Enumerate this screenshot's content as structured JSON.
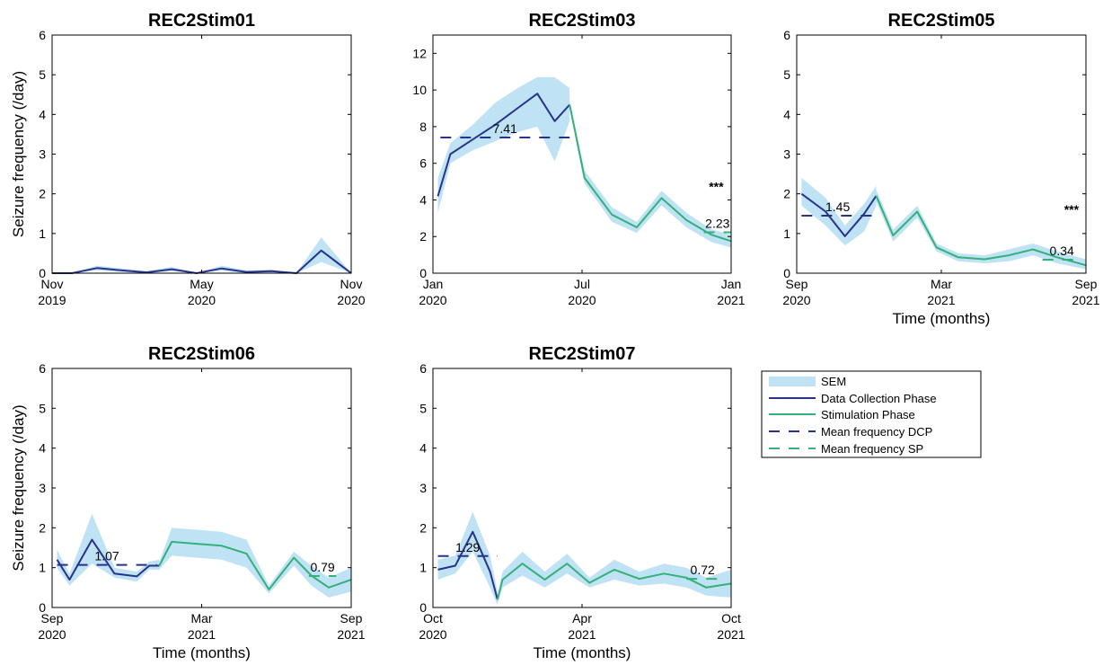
{
  "colors": {
    "data_collection": "#26328c",
    "stimulation": "#34b07a",
    "sem": "#bfe3f5",
    "axis": "#000000"
  },
  "legend": {
    "entries": [
      "SEM",
      "Data Collection Phase",
      "Stimulation Phase",
      "Mean frequency DCP",
      "Mean frequency SP"
    ]
  },
  "chart_data": [
    {
      "type": "line",
      "title": "REC2Stim01",
      "ylabel": "Seizure frequency (/day)",
      "xlabel": "",
      "xlim": [
        0,
        12
      ],
      "ylim": [
        0,
        6
      ],
      "yticks": [
        0,
        1,
        2,
        3,
        4,
        5,
        6
      ],
      "xticks": [
        {
          "x": 0,
          "label": [
            "Nov",
            "2019"
          ]
        },
        {
          "x": 6,
          "label": [
            "May",
            "2020"
          ]
        },
        {
          "x": 12,
          "label": [
            "Nov",
            "2020"
          ]
        }
      ],
      "series": [
        {
          "phase": "dcp",
          "x": [
            0,
            0.8,
            1.8,
            2.8,
            3.8,
            4.8,
            5.8,
            6.8,
            7.8,
            8.8,
            9.8,
            10.8,
            12
          ],
          "y": [
            0,
            0,
            0.13,
            0.07,
            0.02,
            0.1,
            0,
            0.12,
            0.03,
            0.05,
            0,
            0.57,
            0
          ],
          "lower": [
            0,
            0,
            0.07,
            0.03,
            0,
            0.05,
            0,
            0.06,
            0,
            0.02,
            0,
            0.28,
            0
          ],
          "upper": [
            0,
            0,
            0.19,
            0.12,
            0.05,
            0.16,
            0,
            0.19,
            0.07,
            0.09,
            0,
            0.9,
            0
          ]
        }
      ],
      "means": [],
      "stars": null
    },
    {
      "type": "line",
      "title": "REC2Stim03",
      "ylabel": "",
      "xlabel": "",
      "xlim": [
        0,
        12
      ],
      "ylim": [
        0,
        13
      ],
      "yticks": [
        0,
        2,
        4,
        6,
        8,
        10,
        12
      ],
      "xticks": [
        {
          "x": 0,
          "label": [
            "Jan",
            "2020"
          ]
        },
        {
          "x": 6,
          "label": [
            "Jul",
            "2020"
          ]
        },
        {
          "x": 12,
          "label": [
            "Jan",
            "2021"
          ]
        }
      ],
      "series": [
        {
          "phase": "dcp",
          "x": [
            0.2,
            0.7,
            1.6,
            2.5,
            3.4,
            4.2,
            4.9,
            5.5
          ],
          "y": [
            4.2,
            6.5,
            7.3,
            8.1,
            9.0,
            9.8,
            8.3,
            9.2
          ],
          "lower": [
            3.3,
            6.0,
            6.7,
            7.2,
            7.7,
            8.0,
            6.1,
            8.3
          ],
          "upper": [
            5.2,
            7.1,
            8.1,
            9.3,
            10.1,
            10.7,
            10.7,
            10.1
          ]
        },
        {
          "phase": "sp",
          "x": [
            5.5,
            6.1,
            7.2,
            8.2,
            9.2,
            10.2,
            11.2,
            12
          ],
          "y": [
            9.2,
            5.2,
            3.2,
            2.5,
            4.1,
            2.9,
            2.1,
            1.75
          ],
          "lower": [
            9.0,
            4.9,
            2.8,
            2.2,
            3.7,
            2.5,
            1.7,
            1.4
          ],
          "upper": [
            9.4,
            5.6,
            3.6,
            2.8,
            4.5,
            3.3,
            2.4,
            2.1
          ]
        }
      ],
      "means": [
        {
          "phase": "dcp",
          "value": 7.41,
          "label": "7.41",
          "x0": 0.3,
          "x1": 5.5
        },
        {
          "phase": "sp",
          "value": 2.23,
          "label": "2.23",
          "x0": 10.9,
          "x1": 12
        }
      ],
      "stars": {
        "text": "***",
        "x": 11.4,
        "y": 4.5
      }
    },
    {
      "type": "line",
      "title": "REC2Stim05",
      "ylabel": "",
      "xlabel": "Time (months)",
      "xlim": [
        0,
        12
      ],
      "ylim": [
        0,
        6
      ],
      "yticks": [
        0,
        1,
        2,
        3,
        4,
        5,
        6
      ],
      "xticks": [
        {
          "x": 0,
          "label": [
            "Sep",
            "2020"
          ]
        },
        {
          "x": 6,
          "label": [
            "Mar",
            "2021"
          ]
        },
        {
          "x": 12,
          "label": [
            "Sep",
            "2021"
          ]
        }
      ],
      "series": [
        {
          "phase": "dcp",
          "x": [
            0.2,
            1.2,
            2.0,
            2.8,
            3.3
          ],
          "y": [
            2.0,
            1.55,
            0.93,
            1.5,
            1.95
          ],
          "lower": [
            1.7,
            1.2,
            0.7,
            1.05,
            1.7
          ],
          "upper": [
            2.4,
            1.9,
            1.2,
            1.75,
            2.2
          ]
        },
        {
          "phase": "sp",
          "x": [
            3.3,
            4.0,
            5.0,
            5.8,
            6.7,
            7.8,
            8.8,
            9.8,
            10.8,
            12
          ],
          "y": [
            1.95,
            0.95,
            1.55,
            0.65,
            0.4,
            0.35,
            0.45,
            0.6,
            0.4,
            0.2
          ],
          "lower": [
            1.8,
            0.8,
            1.4,
            0.55,
            0.3,
            0.25,
            0.3,
            0.45,
            0.25,
            0.1
          ],
          "upper": [
            2.1,
            1.1,
            1.7,
            0.75,
            0.5,
            0.45,
            0.6,
            0.75,
            0.55,
            0.35
          ]
        }
      ],
      "means": [
        {
          "phase": "dcp",
          "value": 1.45,
          "label": "1.45",
          "x0": 0.2,
          "x1": 3.2
        },
        {
          "phase": "sp",
          "value": 0.34,
          "label": "0.34",
          "x0": 10.2,
          "x1": 11.8
        }
      ],
      "stars": {
        "text": "***",
        "x": 11.4,
        "y": 1.5
      }
    },
    {
      "type": "line",
      "title": "REC2Stim06",
      "ylabel": "Seizure frequency (/day)",
      "xlabel": "Time (months)",
      "xlim": [
        0,
        12
      ],
      "ylim": [
        0,
        6
      ],
      "yticks": [
        0,
        1,
        2,
        3,
        4,
        5,
        6
      ],
      "xticks": [
        {
          "x": 0,
          "label": [
            "Sep",
            "2020"
          ]
        },
        {
          "x": 6,
          "label": [
            "Mar",
            "2021"
          ]
        },
        {
          "x": 12,
          "label": [
            "Sep",
            "2021"
          ]
        }
      ],
      "series": [
        {
          "phase": "dcp",
          "x": [
            0.2,
            0.7,
            1.6,
            2.5,
            3.4,
            3.9,
            4.3
          ],
          "y": [
            1.2,
            0.7,
            1.7,
            0.85,
            0.78,
            1.05,
            1.05
          ],
          "lower": [
            1.0,
            0.55,
            1.1,
            0.75,
            0.65,
            0.95,
            0.95
          ],
          "upper": [
            1.45,
            0.85,
            2.35,
            1.0,
            0.9,
            1.15,
            1.2
          ]
        },
        {
          "phase": "sp",
          "x": [
            4.3,
            4.8,
            5.8,
            6.8,
            7.8,
            8.7,
            9.7,
            10.4,
            11.1,
            12
          ],
          "y": [
            1.05,
            1.65,
            1.6,
            1.55,
            1.35,
            0.45,
            1.25,
            0.8,
            0.5,
            0.7
          ],
          "lower": [
            0.95,
            1.3,
            1.25,
            1.2,
            1.0,
            0.35,
            1.05,
            0.55,
            0.25,
            0.4
          ],
          "upper": [
            1.15,
            2.0,
            1.95,
            1.9,
            1.7,
            0.55,
            1.4,
            1.05,
            0.75,
            1.0
          ]
        }
      ],
      "means": [
        {
          "phase": "dcp",
          "value": 1.07,
          "label": "1.07",
          "x0": 0.2,
          "x1": 4.2
        },
        {
          "phase": "sp",
          "value": 0.79,
          "label": "0.79",
          "x0": 10.3,
          "x1": 11.4
        }
      ],
      "stars": null
    },
    {
      "type": "line",
      "title": "REC2Stim07",
      "ylabel": "",
      "xlabel": "Time (months)",
      "xlim": [
        0,
        12
      ],
      "ylim": [
        0,
        6
      ],
      "yticks": [
        0,
        1,
        2,
        3,
        4,
        5,
        6
      ],
      "xticks": [
        {
          "x": 0,
          "label": [
            "Oct",
            "2020"
          ]
        },
        {
          "x": 6,
          "label": [
            "Apr",
            "2021"
          ]
        },
        {
          "x": 12,
          "label": [
            "Oct",
            "2021"
          ]
        }
      ],
      "series": [
        {
          "phase": "dcp",
          "x": [
            0.2,
            0.9,
            1.6,
            2.3,
            2.6
          ],
          "y": [
            0.95,
            1.05,
            1.9,
            0.9,
            0.2
          ],
          "lower": [
            0.7,
            0.85,
            1.4,
            0.5,
            0.05
          ],
          "upper": [
            1.2,
            1.3,
            2.4,
            1.3,
            0.4
          ]
        },
        {
          "phase": "sp",
          "x": [
            2.6,
            2.8,
            3.6,
            4.5,
            5.4,
            6.3,
            7.3,
            8.3,
            9.3,
            10.2,
            11.0,
            12
          ],
          "y": [
            0.2,
            0.7,
            1.1,
            0.7,
            1.1,
            0.62,
            0.95,
            0.72,
            0.85,
            0.75,
            0.5,
            0.6
          ],
          "lower": [
            0.1,
            0.5,
            0.8,
            0.5,
            0.85,
            0.5,
            0.7,
            0.55,
            0.6,
            0.5,
            0.3,
            0.25
          ],
          "upper": [
            0.3,
            0.9,
            1.4,
            0.9,
            1.35,
            0.75,
            1.2,
            0.9,
            1.1,
            1.0,
            0.75,
            0.95
          ]
        }
      ],
      "means": [
        {
          "phase": "dcp",
          "value": 1.29,
          "label": "1.29",
          "x0": 0.2,
          "x1": 2.6
        },
        {
          "phase": "sp",
          "value": 0.72,
          "label": "0.72",
          "x0": 10.2,
          "x1": 11.5
        }
      ],
      "stars": null
    }
  ]
}
